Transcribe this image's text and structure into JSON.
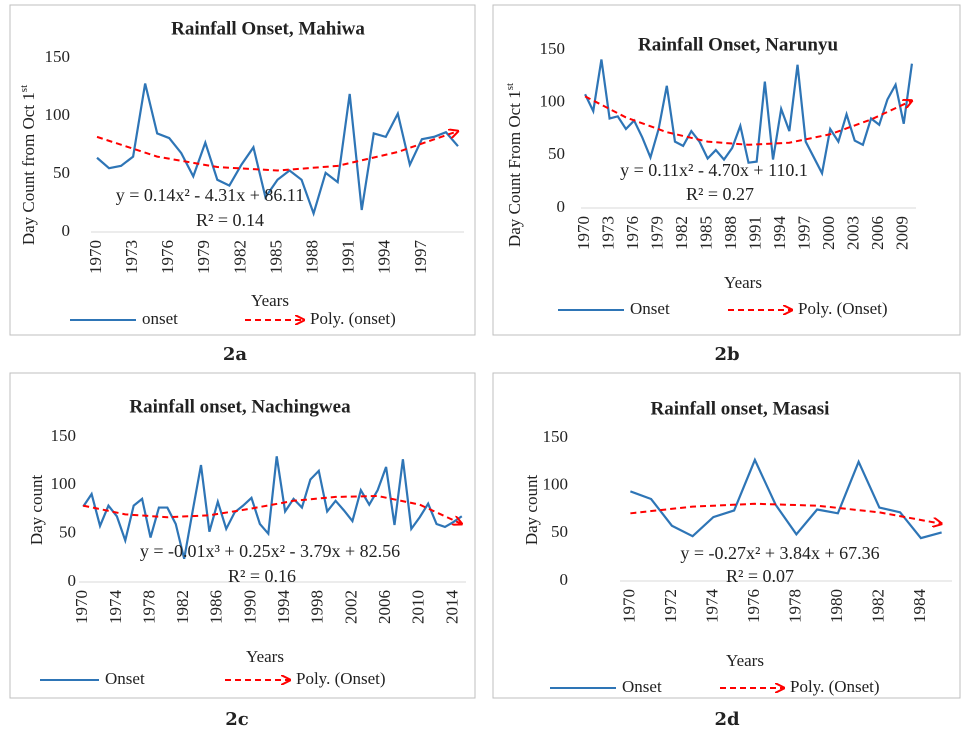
{
  "chart_data": [
    {
      "type": "line",
      "label": "2a",
      "title": "Rainfall Onset, Mahiwa",
      "x_label": "Years",
      "y_label": [
        "Day Count from Oct 1",
        "st"
      ],
      "equation": "y = 0.14x² - 4.31x + 86.11",
      "r_squared": "R² = 0.14",
      "x": [
        1970,
        1971,
        1972,
        1973,
        1974,
        1975,
        1976,
        1977,
        1978,
        1979,
        1980,
        1981,
        1982,
        1983,
        1984,
        1985,
        1986,
        1987,
        1988,
        1989,
        1990,
        1991,
        1992,
        1993,
        1994,
        1995,
        1996,
        1997,
        1998,
        1999,
        2000
      ],
      "xlim": [
        1969.5,
        2000.5
      ],
      "xticks": [
        1970,
        1973,
        1976,
        1979,
        1982,
        1985,
        1988,
        1991,
        1994,
        1997
      ],
      "ylim": [
        0,
        150
      ],
      "yticks": [
        0,
        50,
        100,
        150
      ],
      "legend": "bottom",
      "series": [
        {
          "name": "onset",
          "color": "#2e75b6",
          "values": [
            64,
            55,
            57,
            65,
            128,
            85,
            81,
            68,
            48,
            77,
            45,
            40,
            58,
            73,
            30,
            45,
            53,
            45,
            16,
            51,
            43,
            119,
            19,
            85,
            82,
            102,
            58,
            80,
            82,
            86,
            74
          ]
        },
        {
          "name": "Poly. (onset)",
          "color": "#ff0000",
          "dashed": true,
          "x": [
            1970,
            1975,
            1980,
            1985,
            1990,
            1995,
            2000
          ],
          "values": [
            82,
            65,
            56,
            53,
            57,
            69,
            87
          ]
        }
      ]
    },
    {
      "type": "line",
      "label": "2b",
      "title": "Rainfall Onset, Narunyu",
      "x_label": "Years",
      "y_label": [
        "Day Count From Oct 1",
        "st"
      ],
      "equation": "y = 0.11x² - 4.70x + 110.1",
      "r_squared": "R² = 0.27",
      "x": [
        1970,
        1971,
        1972,
        1973,
        1974,
        1975,
        1976,
        1977,
        1978,
        1979,
        1980,
        1981,
        1982,
        1983,
        1984,
        1985,
        1986,
        1987,
        1988,
        1989,
        1990,
        1991,
        1992,
        1993,
        1994,
        1995,
        1996,
        1997,
        1998,
        1999,
        2000,
        2001,
        2002,
        2003,
        2004,
        2005,
        2006,
        2007,
        2008,
        2009,
        2010
      ],
      "xlim": [
        1969.5,
        2010.5
      ],
      "xticks": [
        1970,
        1973,
        1976,
        1979,
        1982,
        1985,
        1988,
        1991,
        1994,
        1997,
        2000,
        2003,
        2006,
        2009
      ],
      "ylim": [
        0,
        150
      ],
      "yticks": [
        0,
        50,
        100,
        150
      ],
      "legend": "bottom",
      "series": [
        {
          "name": "Onset",
          "color": "#2e75b6",
          "values": [
            108,
            92,
            141,
            85,
            87,
            75,
            83,
            67,
            48,
            75,
            116,
            63,
            59,
            73,
            63,
            47,
            55,
            46,
            57,
            78,
            43,
            44,
            120,
            46,
            94,
            73,
            136,
            63,
            48,
            33,
            75,
            63,
            89,
            64,
            60,
            85,
            79,
            103,
            117,
            80,
            137
          ]
        },
        {
          "name": "Poly. (Onset)",
          "color": "#ff0000",
          "dashed": true,
          "x": [
            1970,
            1975,
            1980,
            1985,
            1990,
            1995,
            2000,
            2005,
            2010
          ],
          "values": [
            106,
            86,
            72,
            63,
            60,
            62,
            70,
            84,
            102
          ]
        }
      ]
    },
    {
      "type": "line",
      "label": "2c",
      "title": "Rainfall onset, Nachingwea",
      "x_label": "Years",
      "y_label": [
        "Day count"
      ],
      "equation": "y = -0.01x³ + 0.25x² - 3.79x + 82.56",
      "r_squared": "R² = 0.16",
      "x": [
        1970,
        1971,
        1972,
        1973,
        1974,
        1975,
        1976,
        1977,
        1978,
        1979,
        1980,
        1981,
        1982,
        1983,
        1984,
        1985,
        1986,
        1987,
        1988,
        1989,
        1990,
        1991,
        1992,
        1993,
        1994,
        1995,
        1996,
        1997,
        1998,
        1999,
        2000,
        2001,
        2002,
        2003,
        2004,
        2005,
        2006,
        2007,
        2008,
        2009,
        2010,
        2011,
        2012,
        2013,
        2014,
        2015
      ],
      "xlim": [
        1969.5,
        2015.5
      ],
      "xticks": [
        1970,
        1974,
        1978,
        1982,
        1986,
        1990,
        1994,
        1998,
        2002,
        2006,
        2010,
        2014
      ],
      "ylim": [
        0,
        150
      ],
      "yticks": [
        0,
        50,
        100,
        150
      ],
      "legend": "bottom",
      "series": [
        {
          "name": "Onset",
          "color": "#2e75b6",
          "values": [
            78,
            91,
            58,
            79,
            68,
            43,
            79,
            86,
            46,
            77,
            77,
            60,
            24,
            73,
            121,
            52,
            83,
            55,
            72,
            79,
            87,
            60,
            50,
            130,
            73,
            86,
            77,
            106,
            115,
            73,
            84,
            74,
            63,
            95,
            80,
            95,
            119,
            59,
            127,
            55,
            67,
            81,
            60,
            57,
            62,
            68
          ]
        },
        {
          "name": "Poly. (Onset)",
          "color": "#ff0000",
          "dashed": true,
          "x": [
            1970,
            1975,
            1980,
            1985,
            1990,
            1995,
            2000,
            2005,
            2010,
            2015
          ],
          "values": [
            79,
            70,
            67,
            69,
            76,
            84,
            88,
            89,
            80,
            60
          ]
        }
      ]
    },
    {
      "type": "line",
      "label": "2d",
      "title": "Rainfall onset, Masasi",
      "x_label": "Years",
      "y_label": [
        "Day count"
      ],
      "equation": "y = -0.27x² + 3.84x + 67.36",
      "r_squared": "R² = 0.07",
      "x": [
        1970,
        1971,
        1972,
        1973,
        1974,
        1975,
        1976,
        1977,
        1978,
        1979,
        1980,
        1981,
        1982,
        1983,
        1984,
        1985
      ],
      "xlim": [
        1969.5,
        1985.5
      ],
      "xticks": [
        1970,
        1972,
        1974,
        1976,
        1978,
        1980,
        1982,
        1984
      ],
      "ylim": [
        0,
        150
      ],
      "yticks": [
        0,
        50,
        100,
        150
      ],
      "legend": "bottom",
      "series": [
        {
          "name": "Onset",
          "color": "#2e75b6",
          "values": [
            94,
            86,
            58,
            47,
            67,
            74,
            127,
            80,
            49,
            75,
            71,
            125,
            77,
            72,
            45,
            51
          ]
        },
        {
          "name": "Poly. (Onset)",
          "color": "#ff0000",
          "dashed": true,
          "x": [
            1970,
            1973,
            1976,
            1979,
            1982,
            1985
          ],
          "values": [
            71,
            78,
            81,
            79,
            72,
            60
          ]
        }
      ]
    }
  ]
}
